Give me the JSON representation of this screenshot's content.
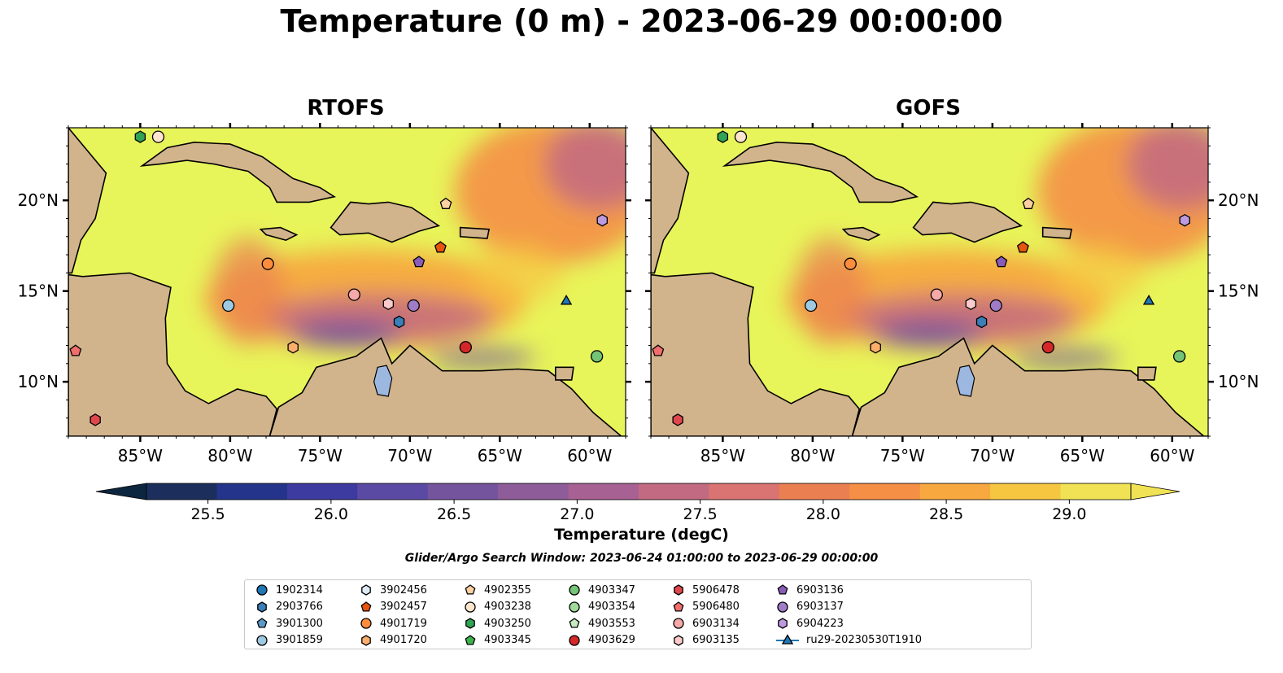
{
  "title": "Temperature (0 m) - 2023-06-29 00:00:00",
  "panels": [
    {
      "title": "RTOFS"
    },
    {
      "title": "GOFS"
    }
  ],
  "colors": {
    "land": "#d2b48c",
    "lake": "#9cb8e0",
    "ocean_warm": "#e8f55a",
    "colormap": [
      "#0d2640",
      "#1b2e5c",
      "#24348a",
      "#3d3aa0",
      "#5b4aa4",
      "#74549d",
      "#8e5c98",
      "#a76192",
      "#c26a82",
      "#d97472",
      "#ea8052",
      "#f48f45",
      "#f7a83e",
      "#f6c641",
      "#f0e254"
    ]
  },
  "chart_data": {
    "type": "heatmap",
    "title": "Temperature (0 m) - 2023-06-29 00:00:00",
    "panels": [
      "RTOFS",
      "GOFS"
    ],
    "xlim": [
      -89,
      -58
    ],
    "ylim": [
      7,
      24
    ],
    "xticks": [
      -85,
      -80,
      -75,
      -70,
      -65,
      -60
    ],
    "xticklabels": [
      "85°W",
      "80°W",
      "75°W",
      "70°W",
      "65°W",
      "60°W"
    ],
    "yticks": [
      10,
      15,
      20
    ],
    "yticklabels": [
      "10°N",
      "15°N",
      "20°N"
    ],
    "colorbar": {
      "label": "Temperature (degC)",
      "vmin": 25.25,
      "vmax": 29.25,
      "ticks": [
        25.5,
        26.0,
        26.5,
        27.0,
        27.5,
        28.0,
        28.5,
        29.0
      ],
      "ticklabels": [
        "25.5",
        "26.0",
        "26.5",
        "27.0",
        "27.5",
        "28.0",
        "28.5",
        "29.0"
      ],
      "extend": "both"
    },
    "search_window": "Glider/Argo Search Window: 2023-06-24 01:00:00 to 2023-06-29 00:00:00",
    "platforms": [
      {
        "name": "1902314",
        "marker": "circle",
        "color": "#1f77b4",
        "lon": null,
        "lat": null
      },
      {
        "name": "2903766",
        "marker": "hexagon",
        "color": "#3a7fb8",
        "lon": -70.6,
        "lat": 13.3
      },
      {
        "name": "3901300",
        "marker": "pentagon",
        "color": "#5a9ac8",
        "lon": null,
        "lat": null
      },
      {
        "name": "3901859",
        "marker": "circle",
        "color": "#9ecae1",
        "lon": -80.1,
        "lat": 14.2
      },
      {
        "name": "3902456",
        "marker": "hexagon",
        "color": "#deebf7",
        "lon": null,
        "lat": null
      },
      {
        "name": "3902457",
        "marker": "pentagon",
        "color": "#e6550d",
        "lon": -68.3,
        "lat": 17.4
      },
      {
        "name": "4901719",
        "marker": "circle",
        "color": "#fd8d3c",
        "lon": -77.9,
        "lat": 16.5
      },
      {
        "name": "4901720",
        "marker": "hexagon",
        "color": "#fdae6b",
        "lon": -76.5,
        "lat": 11.9
      },
      {
        "name": "4902355",
        "marker": "pentagon",
        "color": "#fdd0a2",
        "lon": -68.0,
        "lat": 19.8
      },
      {
        "name": "4903238",
        "marker": "circle",
        "color": "#fee6ce",
        "lon": -84.0,
        "lat": 23.5
      },
      {
        "name": "4903250",
        "marker": "hexagon",
        "color": "#31a354",
        "lon": -85.0,
        "lat": 23.5
      },
      {
        "name": "4903345",
        "marker": "pentagon",
        "color": "#3cb44b",
        "lon": null,
        "lat": null
      },
      {
        "name": "4903347",
        "marker": "circle",
        "color": "#74c476",
        "lon": -59.6,
        "lat": 11.4
      },
      {
        "name": "4903354",
        "marker": "circle",
        "color": "#a1d99b",
        "lon": null,
        "lat": null
      },
      {
        "name": "4903553",
        "marker": "pentagon",
        "color": "#c7e9c0",
        "lon": null,
        "lat": null
      },
      {
        "name": "4903629",
        "marker": "circle",
        "color": "#d62728",
        "lon": -66.9,
        "lat": 11.9
      },
      {
        "name": "5906478",
        "marker": "hexagon",
        "color": "#e0474c",
        "lon": -87.5,
        "lat": 7.9
      },
      {
        "name": "5906480",
        "marker": "pentagon",
        "color": "#f26d6d",
        "lon": -88.6,
        "lat": 11.7
      },
      {
        "name": "6903134",
        "marker": "circle",
        "color": "#f7a8a8",
        "lon": -73.1,
        "lat": 14.8
      },
      {
        "name": "6903135",
        "marker": "hexagon",
        "color": "#fbcaca",
        "lon": -71.2,
        "lat": 14.3
      },
      {
        "name": "6903136",
        "marker": "pentagon",
        "color": "#8a5cb8",
        "lon": -69.5,
        "lat": 16.6
      },
      {
        "name": "6903137",
        "marker": "circle",
        "color": "#a07cc8",
        "lon": -69.8,
        "lat": 14.2
      },
      {
        "name": "6904223",
        "marker": "hexagon",
        "color": "#bc9be0",
        "lon": -59.3,
        "lat": 18.9
      },
      {
        "name": "ru29-20230530T1910",
        "marker": "triangle",
        "color": "#1f77b4",
        "lon": -61.3,
        "lat": 14.5
      }
    ]
  }
}
